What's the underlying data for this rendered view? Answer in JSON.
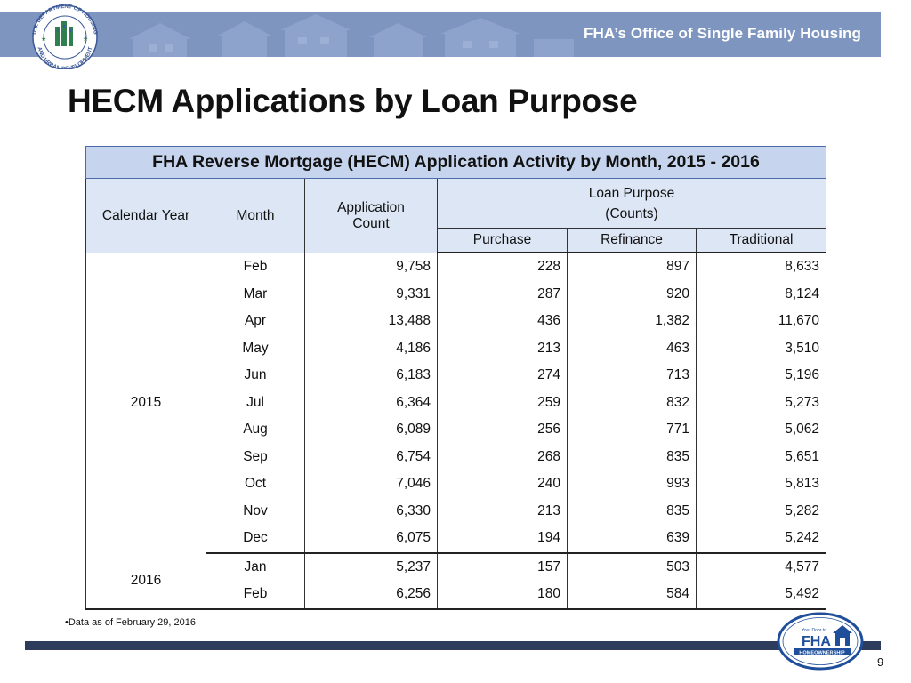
{
  "banner": {
    "title": "FHA’s Office of Single Family Housing",
    "seal_text_top": "U.S. DEPARTMENT OF HOUSING",
    "seal_text_bottom": "AND URBAN DEVELOPMENT"
  },
  "page_title": "HECM Applications by Loan Purpose",
  "table": {
    "caption": "FHA Reverse Mortgage (HECM) Application Activity by Month, 2015 - 2016",
    "headers": {
      "calendar_year": "Calendar Year",
      "month": "Month",
      "application_count_line1": "Application",
      "application_count_line2": "Count",
      "loan_purpose_line1": "Loan Purpose",
      "loan_purpose_line2": "(Counts)",
      "purchase": "Purchase",
      "refinance": "Refinance",
      "traditional": "Traditional"
    },
    "groups": [
      {
        "year": "2015",
        "rows": [
          {
            "month": "Feb",
            "count": "9,758",
            "purchase": "228",
            "refinance": "897",
            "traditional": "8,633"
          },
          {
            "month": "Mar",
            "count": "9,331",
            "purchase": "287",
            "refinance": "920",
            "traditional": "8,124"
          },
          {
            "month": "Apr",
            "count": "13,488",
            "purchase": "436",
            "refinance": "1,382",
            "traditional": "11,670"
          },
          {
            "month": "May",
            "count": "4,186",
            "purchase": "213",
            "refinance": "463",
            "traditional": "3,510"
          },
          {
            "month": "Jun",
            "count": "6,183",
            "purchase": "274",
            "refinance": "713",
            "traditional": "5,196"
          },
          {
            "month": "Jul",
            "count": "6,364",
            "purchase": "259",
            "refinance": "832",
            "traditional": "5,273"
          },
          {
            "month": "Aug",
            "count": "6,089",
            "purchase": "256",
            "refinance": "771",
            "traditional": "5,062"
          },
          {
            "month": "Sep",
            "count": "6,754",
            "purchase": "268",
            "refinance": "835",
            "traditional": "5,651"
          },
          {
            "month": "Oct",
            "count": "7,046",
            "purchase": "240",
            "refinance": "993",
            "traditional": "5,813"
          },
          {
            "month": "Nov",
            "count": "6,330",
            "purchase": "213",
            "refinance": "835",
            "traditional": "5,282"
          },
          {
            "month": "Dec",
            "count": "6,075",
            "purchase": "194",
            "refinance": "639",
            "traditional": "5,242"
          }
        ]
      },
      {
        "year": "2016",
        "rows": [
          {
            "month": "Jan",
            "count": "5,237",
            "purchase": "157",
            "refinance": "503",
            "traditional": "4,577"
          },
          {
            "month": "Feb",
            "count": "6,256",
            "purchase": "180",
            "refinance": "584",
            "traditional": "5,492"
          }
        ]
      }
    ]
  },
  "footnote": "Data as of February 29, 2016",
  "fha_logo": {
    "tagline": "Your Door to",
    "brand": "FHA",
    "subtitle": "HOMEOWNERSHIP"
  },
  "page_number": "9",
  "colors": {
    "banner": "#7e95c0",
    "caption_fill": "#c6d4ed",
    "header_fill": "#dce6f5",
    "footer_bar": "#2d3c5c",
    "logo_blue": "#1f4e9a"
  }
}
